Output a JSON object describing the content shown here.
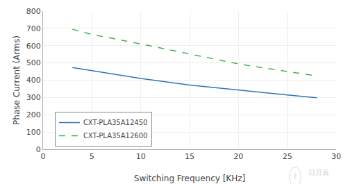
{
  "chart_data": {
    "type": "line",
    "x_label": "Switching Frequency [KHz]",
    "y_label": "Phase Current (Arms)",
    "series": [
      {
        "name": "CXT-PLA35A12450",
        "color": "#2E75B6",
        "line_style": "solid",
        "x": [
          3,
          5,
          10,
          15,
          20,
          25,
          28
        ],
        "values": [
          473,
          455,
          410,
          372,
          345,
          315,
          298
        ]
      },
      {
        "name": "CXT-PLA35A12600",
        "color": "#3CB550",
        "line_style": "dashed",
        "x": [
          3,
          5,
          10,
          15,
          20,
          25,
          28
        ],
        "values": [
          695,
          665,
          610,
          553,
          494,
          450,
          425
        ]
      }
    ],
    "xlim": [
      0,
      30
    ],
    "ylim": [
      0,
      800
    ],
    "xticks": [
      0,
      5,
      10,
      15,
      20,
      25,
      30
    ],
    "yticks": [
      0,
      100,
      200,
      300,
      400,
      500,
      600,
      700,
      800
    ],
    "grid": true,
    "legend": "lower left",
    "annotations": [
      "2",
      "日月辰"
    ]
  }
}
